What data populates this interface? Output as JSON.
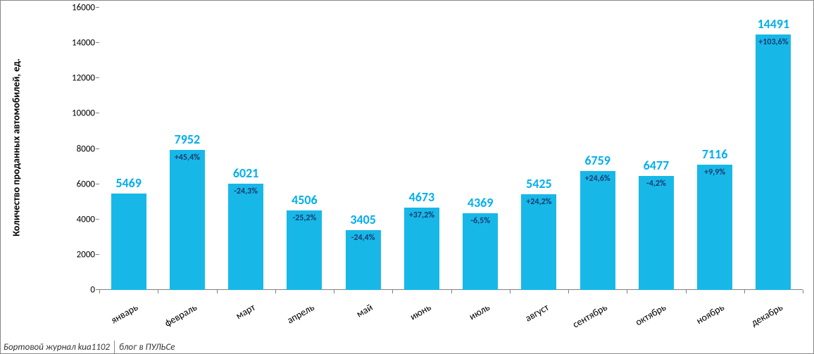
{
  "chart": {
    "type": "bar",
    "y_axis_label": "Количество проданных  автомобилей, ед.",
    "ylim": [
      0,
      16000
    ],
    "ytick_step": 2000,
    "yticks": [
      0,
      2000,
      4000,
      6000,
      8000,
      10000,
      12000,
      14000,
      16000
    ],
    "categories": [
      "январь",
      "февраль",
      "март",
      "апрель",
      "май",
      "июнь",
      "июль",
      "август",
      "сентябрь",
      "октябрь",
      "ноябрь",
      "декабрь"
    ],
    "values": [
      5469,
      7952,
      6021,
      4506,
      3405,
      4673,
      4369,
      5425,
      6759,
      6477,
      7116,
      14491
    ],
    "pct_labels": [
      "",
      "+45,4%",
      "-24,3%",
      "-25,2%",
      "-24,4%",
      "+37,2%",
      "-6,5%",
      "+24,2%",
      "+24,6%",
      "-4,2%",
      "+9,9%",
      "+103,6%"
    ],
    "bar_color": "#17b8e8",
    "value_label_color": "#00aeef",
    "pct_label_color": "#1a3a6e",
    "background_color": "#ffffff",
    "axis_color": "#808080",
    "value_label_fontsize": 18,
    "pct_label_fontsize": 12,
    "xlabel_fontsize": 14,
    "ytick_fontsize": 13,
    "bar_width_ratio": 0.6,
    "x_label_rotation": -30
  },
  "footer": {
    "left": "Бортовой журнал kua1102",
    "right": "блог в ПУЛЬСе"
  }
}
